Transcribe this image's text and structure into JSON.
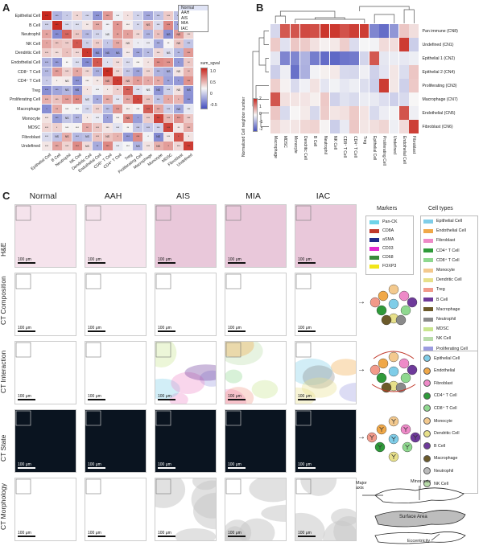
{
  "panelA": {
    "letter": "A",
    "rows": [
      "Epithelial Cell",
      "B Cell",
      "Neutrophil",
      "NK Cell",
      "Dendritic Cell",
      "Endothelial Cell",
      "CD8⁺ T Cell",
      "CD4⁺ T Cell",
      "Treg",
      "Proliferating Cell",
      "Macrophage",
      "Monocyte",
      "MDSC",
      "Fibroblast",
      "Undefined"
    ],
    "cols": [
      "Epithelial Cell",
      "B Cell",
      "Neutrophil",
      "NK Cell",
      "Dendritic Cell",
      "Endothelial Cell",
      "CD8⁺ T Cell",
      "CD4⁺ T Cell",
      "Treg",
      "Proliferating Cell",
      "Macrophage",
      "Monocyte",
      "MDSC",
      "Fibroblast",
      "Undefined"
    ],
    "stage_legend": [
      "Normal",
      "AAH",
      "AIS",
      "MIA",
      "IAC"
    ],
    "colorbar": {
      "title": "sum_sgval",
      "ticks": [
        "1.0",
        "0.5",
        "0",
        "-0.5"
      ]
    },
    "cell_labels": [
      "***",
      "**",
      "*",
      "NS"
    ]
  },
  "panelB": {
    "letter": "B",
    "rows": [
      "Pan immune (CN8)",
      "Undefined (CN1)",
      "Epithelial 1 (CN2)",
      "Epithelial 2 (CN4)",
      "Proliferating (CN3)",
      "Macrophage (CN7)",
      "Endothelial (CN5)",
      "Fibroblast (CN6)"
    ],
    "cols": [
      "Macrophage",
      "MDSC",
      "Monocyte",
      "Dendritic Cell",
      "B Cell",
      "Neutrophil",
      "NK Cell",
      "CD8⁺ T Cell",
      "CD4⁺ T Cell",
      "Treg",
      "Epithelial Cell",
      "Proliferating Cell",
      "Undefined",
      "Endothelial Cell",
      "Fibroblast"
    ],
    "colorbar": {
      "title": "Normalized Cell neighbor number",
      "ticks": [
        "2",
        "1",
        "0",
        "-1",
        "-2"
      ]
    }
  },
  "panelC": {
    "letter": "C",
    "stages": [
      "Normal",
      "AAH",
      "AIS",
      "MIA",
      "IAC"
    ],
    "rows": [
      "H&E",
      "CT Composition",
      "CT Interaction",
      "CT State",
      "CT Morphology"
    ],
    "scale_label": "100 μm",
    "markers": {
      "title": "Markers",
      "items": [
        {
          "label": "Pan-CK",
          "color": "#6fd3e8"
        },
        {
          "label": "CD8A",
          "color": "#c0392b"
        },
        {
          "label": "aSMA",
          "color": "#1f2a8a"
        },
        {
          "label": "CD33",
          "color": "#e32ad0"
        },
        {
          "label": "CD68",
          "color": "#3a8a3a"
        },
        {
          "label": "FOXP3",
          "color": "#f1e51a"
        }
      ]
    },
    "cell_types": {
      "title": "Cell types",
      "items": [
        {
          "label": "Epithelial Cell",
          "color": "#7fcde8"
        },
        {
          "label": "Endothelial Cell",
          "color": "#f0a848"
        },
        {
          "label": "Fibroblast",
          "color": "#ee8ac8"
        },
        {
          "label": "CD4⁺ T Cell",
          "color": "#2f9a3a"
        },
        {
          "label": "CD8⁺ T Cell",
          "color": "#8fd88f"
        },
        {
          "label": "Monocyte",
          "color": "#f3c98e"
        },
        {
          "label": "Dendritic Cell",
          "color": "#e7e08a"
        },
        {
          "label": "Treg",
          "color": "#f29a8a"
        },
        {
          "label": "B Cell",
          "color": "#6e3a9a"
        },
        {
          "label": "Macrophage",
          "color": "#6b5a2a"
        },
        {
          "label": "Neutrophil",
          "color": "#8a8a8a"
        },
        {
          "label": "MDSC",
          "color": "#c9e68e"
        },
        {
          "label": "NK Cell",
          "color": "#b9dcaa"
        },
        {
          "label": "Proliferating Cell",
          "color": "#9b9be0"
        },
        {
          "label": "Undefined",
          "color": "#dddddd"
        }
      ]
    },
    "icon_legend": {
      "items": [
        {
          "label": "Epithelial Cell",
          "color": "#7fcde8"
        },
        {
          "label": "Endothelial",
          "color": "#f0a848"
        },
        {
          "label": "Fibroblast",
          "color": "#ee8ac8"
        },
        {
          "label": "CD4⁺ T Cell",
          "color": "#2f9a3a"
        },
        {
          "label": "CD8⁺ T Cell",
          "color": "#8fd88f"
        },
        {
          "label": "Monocyte",
          "color": "#f3c98e"
        },
        {
          "label": "Dendritic Cell",
          "color": "#e7e08a"
        },
        {
          "label": "B Cell",
          "color": "#6e3a9a"
        },
        {
          "label": "Macrophage",
          "color": "#6b5a2a"
        },
        {
          "label": "Neutrophil",
          "color": "#bbbbbb"
        },
        {
          "label": "NK Cell",
          "color": "#b9dcaa"
        }
      ]
    },
    "morphology": {
      "minor_axis": "Minor axis",
      "major_axis": "Major axis",
      "surface_area": "Surface Area",
      "eccentricity": "Eccentricity"
    }
  }
}
